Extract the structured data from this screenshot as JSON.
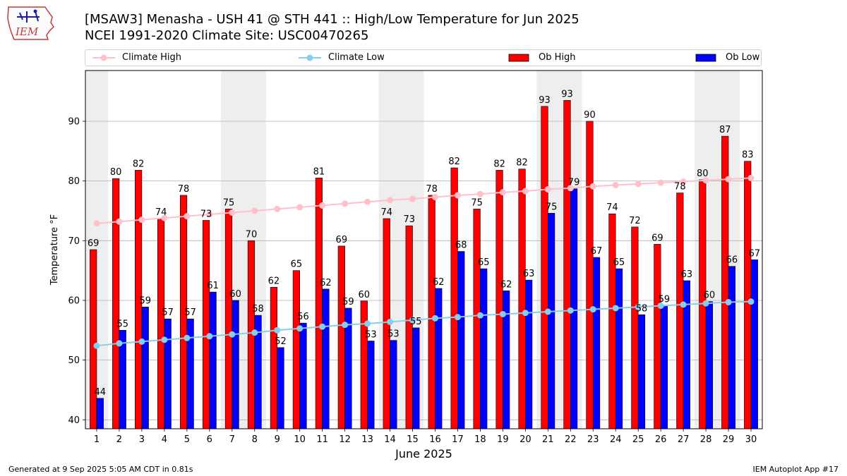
{
  "header": {
    "logo_text": "IEM",
    "title_line1": "[MSAW3] Menasha - USH 41 @ STH 441 :: High/Low Temperature for Jun 2025",
    "title_line2": "NCEI 1991-2020 Climate Site: USC00470265"
  },
  "footer": {
    "generated": "Generated at 9 Sep 2025 5:05 AM CDT in 0.81s",
    "app": "IEM Autoplot App #17"
  },
  "colors": {
    "ob_high": "#ff0000",
    "ob_low": "#0000ff",
    "climate_high": "#ffc0cb",
    "climate_low": "#87ceeb",
    "weekend_band": "#eeeeee",
    "grid": "#b0b0b0"
  },
  "chart_data": {
    "type": "bar",
    "xlabel": "June 2025",
    "ylabel": "Temperature °F",
    "ylim": [
      38.5,
      98.5
    ],
    "xlim": [
      0.5,
      30.5
    ],
    "yticks": [
      40,
      50,
      60,
      70,
      80,
      90
    ],
    "grid": true,
    "legend_placement": "top",
    "categories": [
      "1",
      "2",
      "3",
      "4",
      "5",
      "6",
      "7",
      "8",
      "9",
      "10",
      "11",
      "12",
      "13",
      "14",
      "15",
      "16",
      "17",
      "18",
      "19",
      "20",
      "21",
      "22",
      "23",
      "24",
      "25",
      "26",
      "27",
      "28",
      "29",
      "30"
    ],
    "shaded_days": [
      1,
      7,
      8,
      14,
      15,
      21,
      22,
      28,
      29
    ],
    "series": [
      {
        "name": "Climate High",
        "kind": "line",
        "values": [
          72.9,
          73.2,
          73.5,
          73.8,
          74.1,
          74.4,
          74.7,
          75.0,
          75.3,
          75.6,
          75.9,
          76.2,
          76.5,
          76.8,
          77.0,
          77.3,
          77.6,
          77.8,
          78.1,
          78.3,
          78.6,
          78.8,
          79.1,
          79.3,
          79.5,
          79.7,
          79.9,
          80.1,
          80.3,
          80.5
        ]
      },
      {
        "name": "Climate Low",
        "kind": "line",
        "values": [
          52.4,
          52.8,
          53.1,
          53.4,
          53.7,
          54.0,
          54.3,
          54.6,
          55.0,
          55.3,
          55.6,
          55.9,
          56.1,
          56.4,
          56.7,
          57.0,
          57.2,
          57.5,
          57.7,
          57.9,
          58.1,
          58.3,
          58.5,
          58.7,
          58.9,
          59.1,
          59.3,
          59.5,
          59.7,
          59.8
        ]
      },
      {
        "name": "Ob High",
        "kind": "bar",
        "values": [
          68.5,
          80.4,
          81.8,
          73.7,
          77.6,
          73.4,
          75.3,
          70.0,
          62.2,
          65.0,
          80.5,
          69.1,
          59.9,
          73.7,
          72.5,
          77.6,
          82.2,
          75.3,
          81.8,
          82.0,
          92.5,
          93.5,
          90.0,
          74.5,
          72.3,
          69.4,
          78.0,
          80.2,
          87.5,
          83.3
        ],
        "labels": [
          "69",
          "80",
          "82",
          "74",
          "78",
          "73",
          "75",
          "70",
          "62",
          "65",
          "81",
          "69",
          "60",
          "74",
          "73",
          "78",
          "82",
          "75",
          "82",
          "82",
          "93",
          "93",
          "90",
          "74",
          "72",
          "69",
          "78",
          "80",
          "87",
          "83"
        ]
      },
      {
        "name": "Ob Low",
        "kind": "bar",
        "values": [
          43.6,
          55.0,
          58.9,
          56.9,
          56.9,
          61.4,
          60.0,
          57.5,
          52.1,
          56.2,
          61.9,
          58.7,
          53.2,
          53.3,
          55.4,
          62.0,
          68.2,
          65.3,
          61.6,
          63.4,
          74.6,
          78.7,
          67.2,
          65.3,
          57.6,
          59.1,
          63.3,
          59.8,
          65.7,
          66.8
        ],
        "labels": [
          "44",
          "55",
          "59",
          "57",
          "57",
          "61",
          "60",
          "58",
          "52",
          "56",
          "62",
          "59",
          "53",
          "53",
          "55",
          "62",
          "68",
          "65",
          "62",
          "63",
          "75",
          "79",
          "67",
          "65",
          "58",
          "59",
          "63",
          "60",
          "66",
          "67"
        ]
      }
    ]
  }
}
